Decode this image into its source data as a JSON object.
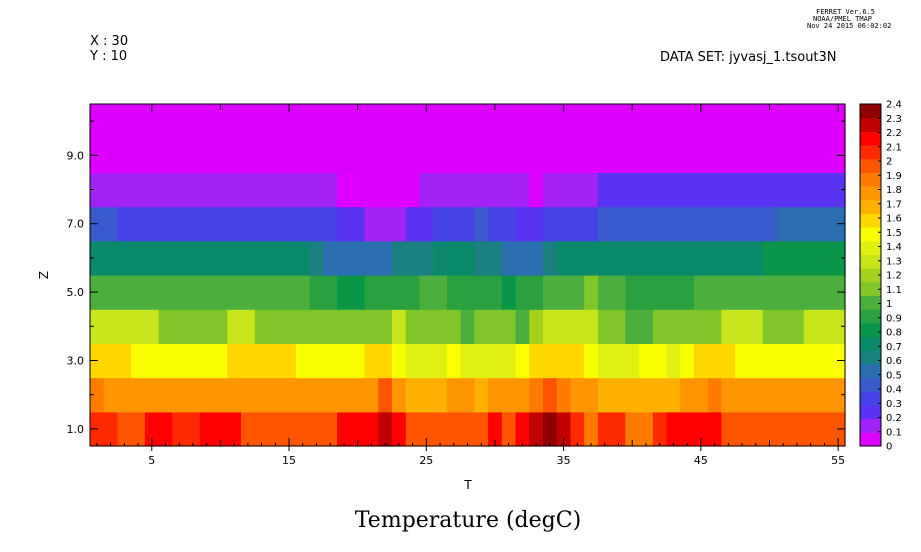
{
  "header": {
    "ferret_version": "FERRET Ver.6.5",
    "ferret_org": "NOAA/PMEL TMAP",
    "ferret_date": "Nov 24 2015 06:02:02",
    "x_label": "X : 30",
    "y_label": "Y : 10",
    "dataset": "DATA SET: jyvasj_1.tsout3N"
  },
  "chart_data": {
    "type": "heatmap",
    "title": "Temperature (degC)",
    "xlabel": "T",
    "ylabel": "Z",
    "xlim": [
      0.5,
      55.5
    ],
    "ylim": [
      0.5,
      10.5
    ],
    "x_ticks": [
      5,
      15,
      25,
      35,
      45,
      55
    ],
    "x_tick_labels": [
      "5",
      "15",
      "25",
      "35",
      "45",
      "55"
    ],
    "y_ticks": [
      1,
      3,
      5,
      7,
      9
    ],
    "y_tick_labels": [
      "1.0",
      "3.0",
      "5.0",
      "7.0",
      "9.0"
    ],
    "legend": {
      "placement": "right",
      "levels": [
        0,
        0.1,
        0.2,
        0.3,
        0.4,
        0.5,
        0.6,
        0.7,
        0.8,
        0.9,
        1,
        1.1,
        1.2,
        1.3,
        1.4,
        1.5,
        1.6,
        1.7,
        1.8,
        1.9,
        2,
        2.1,
        2.2,
        2.3,
        2.4
      ],
      "labels": [
        "0",
        "0.1",
        "0.2",
        "0.3",
        "0.4",
        "0.5",
        "0.6",
        "0.7",
        "0.8",
        "0.9",
        "1",
        "1.1",
        "1.2",
        "1.3",
        "1.4",
        "1.5",
        "1.6",
        "1.7",
        "1.8",
        "1.9",
        "2",
        "2.1",
        "2.2",
        "2.3",
        "2.4"
      ],
      "colors": [
        "#dd00ff",
        "#a322f5",
        "#5a32f2",
        "#4444e6",
        "#3a5acd",
        "#2c6fb0",
        "#1a8080",
        "#0a8a6a",
        "#0a9648",
        "#2aa040",
        "#4cae3c",
        "#80c628",
        "#a4d21c",
        "#c8e41a",
        "#e0f014",
        "#f8ff00",
        "#ffd700",
        "#ffb000",
        "#ff9500",
        "#ff7b00",
        "#ff5500",
        "#ff2a00",
        "#ff0000",
        "#c00000",
        "#900000"
      ]
    },
    "z_rows": [
      {
        "z": 1,
        "runs": [
          [
            1,
            2,
            2.15
          ],
          [
            3,
            4,
            2.05
          ],
          [
            5,
            6,
            2.25
          ],
          [
            7,
            8,
            2.15
          ],
          [
            9,
            11,
            2.25
          ],
          [
            12,
            18,
            2.05
          ],
          [
            19,
            21,
            2.25
          ],
          [
            22,
            22,
            2.35
          ],
          [
            23,
            23,
            2.25
          ],
          [
            24,
            29,
            2.05
          ],
          [
            30,
            30,
            2.25
          ],
          [
            31,
            31,
            2.05
          ],
          [
            32,
            32,
            2.25
          ],
          [
            33,
            33,
            2.35
          ],
          [
            34,
            34,
            2.45
          ],
          [
            35,
            35,
            2.35
          ],
          [
            36,
            36,
            2.15
          ],
          [
            37,
            37,
            1.95
          ],
          [
            38,
            39,
            2.15
          ],
          [
            40,
            41,
            1.95
          ],
          [
            42,
            42,
            2.15
          ],
          [
            43,
            46,
            2.25
          ],
          [
            47,
            55,
            2.05
          ]
        ]
      },
      {
        "z": 2,
        "runs": [
          [
            1,
            1,
            1.95
          ],
          [
            2,
            21,
            1.85
          ],
          [
            22,
            22,
            2.05
          ],
          [
            23,
            23,
            1.85
          ],
          [
            24,
            26,
            1.75
          ],
          [
            27,
            28,
            1.85
          ],
          [
            29,
            29,
            1.75
          ],
          [
            30,
            32,
            1.85
          ],
          [
            33,
            33,
            1.95
          ],
          [
            34,
            34,
            2.05
          ],
          [
            35,
            35,
            1.95
          ],
          [
            36,
            37,
            1.85
          ],
          [
            38,
            43,
            1.75
          ],
          [
            44,
            45,
            1.85
          ],
          [
            46,
            46,
            1.95
          ],
          [
            47,
            55,
            1.85
          ]
        ]
      },
      {
        "z": 3,
        "runs": [
          [
            1,
            3,
            1.65
          ],
          [
            4,
            10,
            1.55
          ],
          [
            11,
            15,
            1.65
          ],
          [
            16,
            20,
            1.55
          ],
          [
            21,
            22,
            1.65
          ],
          [
            23,
            23,
            1.55
          ],
          [
            24,
            26,
            1.45
          ],
          [
            27,
            27,
            1.55
          ],
          [
            28,
            31,
            1.45
          ],
          [
            32,
            32,
            1.55
          ],
          [
            33,
            36,
            1.65
          ],
          [
            37,
            37,
            1.55
          ],
          [
            38,
            40,
            1.45
          ],
          [
            41,
            42,
            1.55
          ],
          [
            43,
            43,
            1.45
          ],
          [
            44,
            44,
            1.55
          ],
          [
            45,
            47,
            1.65
          ],
          [
            48,
            55,
            1.55
          ]
        ]
      },
      {
        "z": 4,
        "runs": [
          [
            1,
            5,
            1.35
          ],
          [
            6,
            10,
            1.15
          ],
          [
            11,
            12,
            1.35
          ],
          [
            13,
            22,
            1.15
          ],
          [
            23,
            23,
            1.35
          ],
          [
            24,
            27,
            1.15
          ],
          [
            28,
            28,
            1.05
          ],
          [
            29,
            31,
            1.15
          ],
          [
            32,
            32,
            1.05
          ],
          [
            33,
            33,
            1.25
          ],
          [
            34,
            37,
            1.35
          ],
          [
            38,
            39,
            1.15
          ],
          [
            40,
            41,
            1.05
          ],
          [
            42,
            46,
            1.15
          ],
          [
            47,
            49,
            1.35
          ],
          [
            50,
            52,
            1.15
          ],
          [
            53,
            55,
            1.35
          ]
        ]
      },
      {
        "z": 5,
        "runs": [
          [
            1,
            16,
            1.05
          ],
          [
            17,
            18,
            0.95
          ],
          [
            19,
            20,
            0.85
          ],
          [
            21,
            24,
            0.95
          ],
          [
            25,
            26,
            1.05
          ],
          [
            27,
            30,
            0.95
          ],
          [
            31,
            31,
            0.85
          ],
          [
            32,
            33,
            0.95
          ],
          [
            34,
            36,
            1.05
          ],
          [
            37,
            37,
            1.15
          ],
          [
            38,
            39,
            1.05
          ],
          [
            40,
            44,
            0.95
          ],
          [
            45,
            55,
            1.05
          ]
        ]
      },
      {
        "z": 6,
        "runs": [
          [
            1,
            16,
            0.75
          ],
          [
            17,
            17,
            0.65
          ],
          [
            18,
            22,
            0.55
          ],
          [
            23,
            25,
            0.65
          ],
          [
            26,
            28,
            0.75
          ],
          [
            29,
            30,
            0.65
          ],
          [
            31,
            33,
            0.55
          ],
          [
            34,
            34,
            0.65
          ],
          [
            35,
            49,
            0.75
          ],
          [
            50,
            55,
            0.85
          ]
        ]
      },
      {
        "z": 7,
        "runs": [
          [
            1,
            2,
            0.45
          ],
          [
            3,
            18,
            0.35
          ],
          [
            19,
            20,
            0.25
          ],
          [
            21,
            23,
            0.15
          ],
          [
            24,
            25,
            0.25
          ],
          [
            26,
            28,
            0.35
          ],
          [
            29,
            29,
            0.45
          ],
          [
            30,
            31,
            0.35
          ],
          [
            32,
            33,
            0.25
          ],
          [
            34,
            37,
            0.35
          ],
          [
            38,
            50,
            0.45
          ],
          [
            51,
            55,
            0.55
          ]
        ]
      },
      {
        "z": 8,
        "runs": [
          [
            1,
            18,
            0.15
          ],
          [
            19,
            24,
            0.05
          ],
          [
            25,
            32,
            0.15
          ],
          [
            33,
            33,
            0.05
          ],
          [
            34,
            37,
            0.15
          ],
          [
            38,
            55,
            0.25
          ]
        ]
      },
      {
        "z": 9,
        "runs": [
          [
            1,
            55,
            0.05
          ]
        ]
      },
      {
        "z": 10,
        "runs": [
          [
            1,
            55,
            0.05
          ]
        ]
      }
    ]
  }
}
